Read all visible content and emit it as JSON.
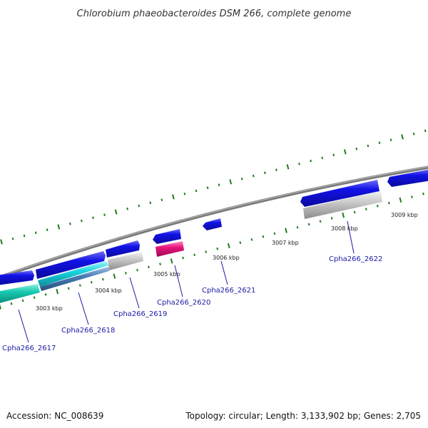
{
  "title": "Chlorobium phaeobacteroides DSM 266, complete genome",
  "footer": {
    "accession": "Accession: NC_008639",
    "summary": "Topology: circular; Length: 3,133,902 bp; Genes: 2,705"
  },
  "colors": {
    "backbone": "#8a8a8a",
    "tick": "#1f7a1f",
    "gene_blue": "#1010e0",
    "gene_cyan": "#19d3e0",
    "gene_teal": "#16c9b0",
    "gene_steel": "#4a7bb5",
    "gene_grey": "#bdbdbd",
    "gene_pink": "#e6147c",
    "label": "#1a1aa6"
  },
  "ticks": [
    {
      "label": "3003 kbp"
    },
    {
      "label": "3004 kbp"
    },
    {
      "label": "3005 kbp"
    },
    {
      "label": "3006 kbp"
    },
    {
      "label": "3007 kbp"
    },
    {
      "label": "3008 kbp"
    },
    {
      "label": "3009 kbp"
    }
  ],
  "gene_labels": [
    {
      "label": "Cpha266_2617"
    },
    {
      "label": "Cpha266_2618"
    },
    {
      "label": "Cpha266_2619"
    },
    {
      "label": "Cpha266_2620"
    },
    {
      "label": "Cpha266_2621"
    },
    {
      "label": "Cpha266_2622"
    }
  ]
}
